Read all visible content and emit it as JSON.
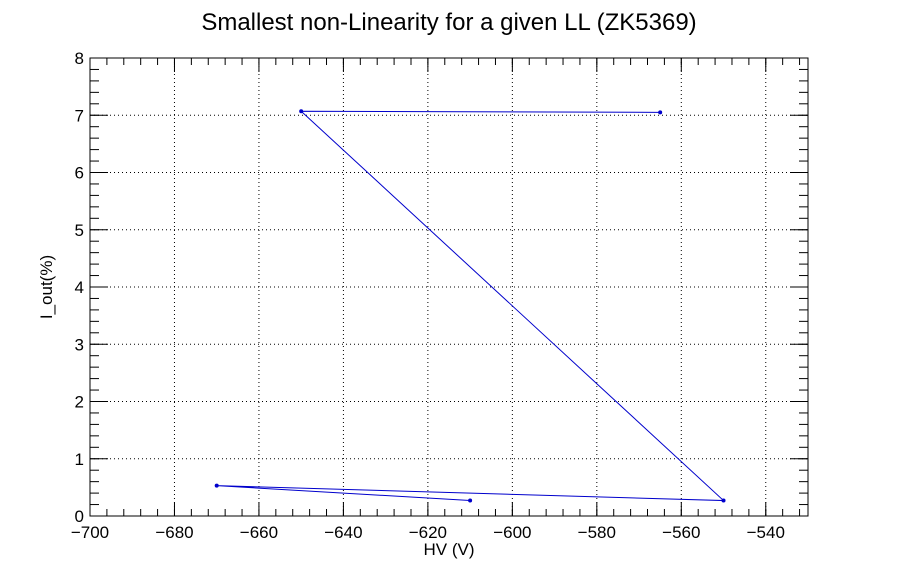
{
  "chart_data": {
    "type": "line",
    "title": "Smallest non-Linearity for a given LL (ZK5369)",
    "xlabel": "HV (V)",
    "ylabel": "I_out(%)",
    "xlim": [
      -700,
      -530
    ],
    "ylim": [
      0,
      8
    ],
    "x_ticks": [
      -700,
      -680,
      -660,
      -640,
      -620,
      -600,
      -580,
      -560,
      -540
    ],
    "x_tick_labels": [
      "−700",
      "−680",
      "−660",
      "−640",
      "−620",
      "−600",
      "−580",
      "−560",
      "−540"
    ],
    "y_ticks": [
      0,
      1,
      2,
      3,
      4,
      5,
      6,
      7,
      8
    ],
    "y_tick_labels": [
      "0",
      "1",
      "2",
      "3",
      "4",
      "5",
      "6",
      "7",
      "8"
    ],
    "grid": true,
    "series": [
      {
        "color": "#0000cc",
        "x": [
          -565,
          -650,
          -550,
          -670,
          -610
        ],
        "y": [
          7.05,
          7.07,
          0.27,
          0.53,
          0.27
        ]
      }
    ]
  }
}
